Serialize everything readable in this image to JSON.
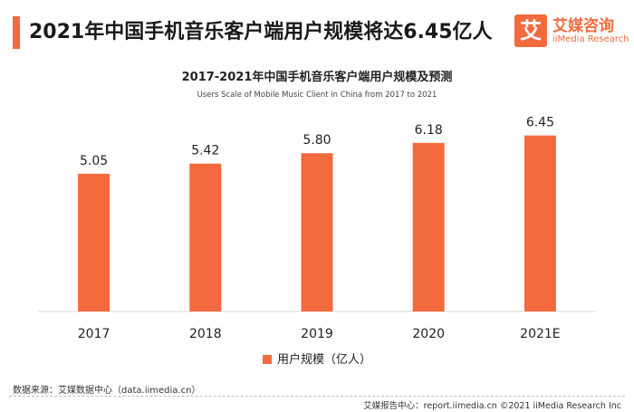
{
  "header": {
    "title": "2021年中国手机音乐客户端用户规模将达6.45亿人"
  },
  "logo": {
    "glyph": "艾",
    "name": "艾媒咨询",
    "sub": "iiMedia Research"
  },
  "chart_data": {
    "type": "bar",
    "title": "2017-2021年中国手机音乐客户端用户规模及预测",
    "subtitle": "Users Scale of Mobile Music Client  in China from 2017 to 2021",
    "categories": [
      "2017",
      "2018",
      "2019",
      "2020",
      "2021E"
    ],
    "series": [
      {
        "name": "用户规模（亿人）",
        "values": [
          5.05,
          5.42,
          5.8,
          6.18,
          6.45
        ],
        "labels": [
          "5.05",
          "5.42",
          "5.80",
          "6.18",
          "6.45"
        ]
      }
    ],
    "ylim": [
      0,
      7.4
    ],
    "grid": false,
    "legend_position": "bottom",
    "color": "#f26a3d"
  },
  "source": "数据来源：艾媒数据中心（data.iimedia.cn）",
  "footer": "艾媒报告中心：report.iimedia.cn ©2021  iiMedia Research  Inc"
}
